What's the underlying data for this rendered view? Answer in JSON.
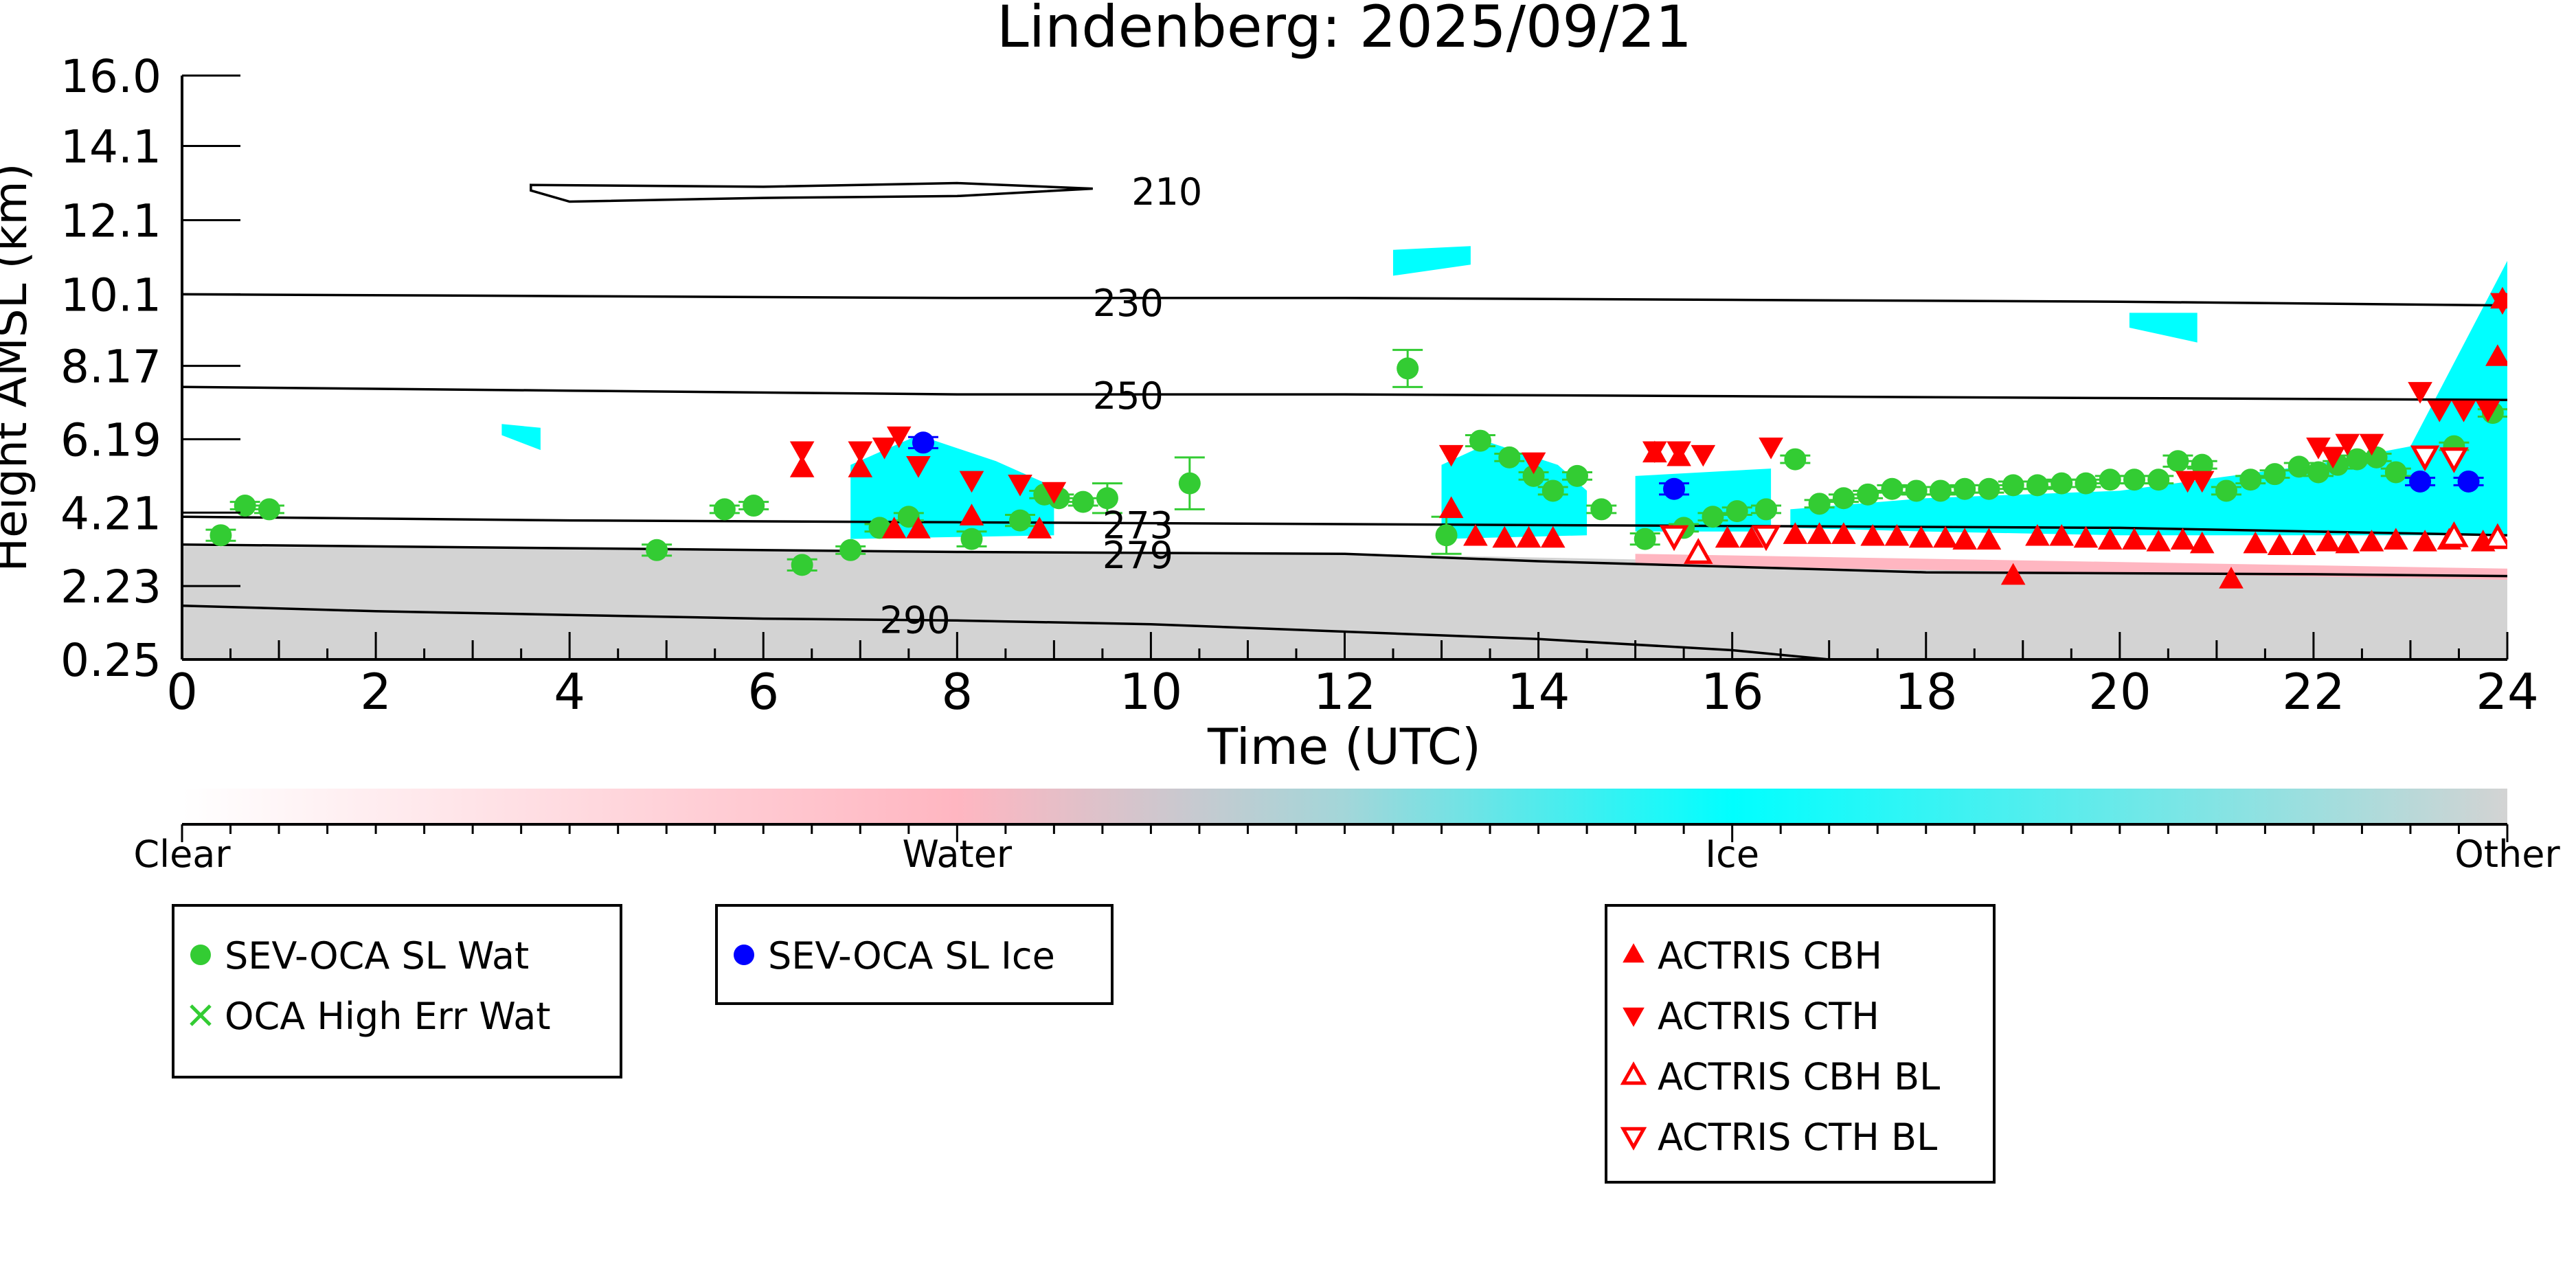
{
  "chart_data": {
    "type": "scatter",
    "title": "Lindenberg: 2025/09/21",
    "xlabel": "Time (UTC)",
    "ylabel": "Height AMSL (km)",
    "xlim": [
      0,
      24
    ],
    "ylim": [
      0.25,
      16.0
    ],
    "x_ticks": [
      0,
      2,
      4,
      6,
      8,
      10,
      12,
      14,
      16,
      18,
      20,
      22,
      24
    ],
    "y_ticks": [
      0.25,
      2.23,
      4.21,
      6.19,
      8.17,
      10.1,
      12.1,
      14.1,
      16.0
    ],
    "y_tick_labels": [
      "0.25",
      "2.23",
      "4.21",
      "6.19",
      "8.17",
      "10.1",
      "12.1",
      "14.1",
      "16.0"
    ],
    "colorbar": {
      "labels": [
        "Clear",
        "Water",
        "Ice",
        "Other"
      ],
      "colors": [
        "#ffffff",
        "#ffb6c1",
        "#00ffff",
        "#d3d3d3"
      ]
    },
    "background_fills": [
      {
        "name": "Other (low)",
        "color": "#d3d3d3",
        "points": [
          [
            0,
            0.25
          ],
          [
            0,
            3.3
          ],
          [
            3,
            3.25
          ],
          [
            6,
            3.2
          ],
          [
            8,
            3.15
          ],
          [
            10,
            3.1
          ],
          [
            12,
            3.1
          ],
          [
            14,
            3.0
          ],
          [
            16,
            2.9
          ],
          [
            18,
            2.7
          ],
          [
            20,
            2.65
          ],
          [
            22,
            2.6
          ],
          [
            24,
            2.5
          ],
          [
            24,
            0.25
          ]
        ]
      },
      {
        "name": "Water patch",
        "color": "#ffb6c1",
        "points": [
          [
            15,
            3.1
          ],
          [
            24,
            2.7
          ],
          [
            24,
            2.4
          ],
          [
            15,
            2.8
          ]
        ]
      },
      {
        "name": "Ice 6.5-9",
        "color": "#00ffff",
        "points": [
          [
            6.9,
            3.5
          ],
          [
            6.9,
            5.5
          ],
          [
            7.6,
            6.3
          ],
          [
            8.4,
            5.6
          ],
          [
            9,
            4.9
          ],
          [
            9,
            3.6
          ]
        ]
      },
      {
        "name": "Ice 13-14.5",
        "color": "#00ffff",
        "points": [
          [
            13,
            3.5
          ],
          [
            13,
            5.5
          ],
          [
            13.5,
            6.1
          ],
          [
            14.2,
            5.5
          ],
          [
            14.5,
            4.8
          ],
          [
            14.5,
            3.6
          ]
        ]
      },
      {
        "name": "Ice 15-16.5",
        "color": "#00ffff",
        "points": [
          [
            15,
            3.7
          ],
          [
            15,
            5.2
          ],
          [
            16.4,
            5.4
          ],
          [
            16.4,
            3.7
          ]
        ]
      },
      {
        "name": "Ice 16.5-24",
        "color": "#00ffff",
        "points": [
          [
            16.6,
            3.8
          ],
          [
            16.6,
            4.3
          ],
          [
            18,
            4.6
          ],
          [
            20,
            4.8
          ],
          [
            22,
            5.5
          ],
          [
            23,
            6.0
          ],
          [
            23.5,
            8.5
          ],
          [
            24,
            11.0
          ],
          [
            24,
            3.6
          ],
          [
            20,
            3.6
          ],
          [
            18,
            3.7
          ]
        ]
      },
      {
        "name": "Ice 12.5-13 high",
        "color": "#00ffff",
        "points": [
          [
            12.5,
            10.6
          ],
          [
            12.5,
            11.3
          ],
          [
            13.3,
            11.4
          ],
          [
            13.3,
            10.9
          ]
        ]
      },
      {
        "name": "Ice 20.5 high",
        "color": "#00ffff",
        "points": [
          [
            20.1,
            9.2
          ],
          [
            20.1,
            9.6
          ],
          [
            20.8,
            9.6
          ],
          [
            20.8,
            8.8
          ]
        ]
      },
      {
        "name": "Ice 3.3 small",
        "color": "#00ffff",
        "points": [
          [
            3.3,
            6.3
          ],
          [
            3.3,
            6.6
          ],
          [
            3.7,
            6.5
          ],
          [
            3.7,
            5.9
          ]
        ]
      }
    ],
    "contours": [
      {
        "label": "210",
        "label_x": 9.8,
        "label_y": 12.85,
        "points": [
          [
            3.6,
            13.05
          ],
          [
            6,
            13.0
          ],
          [
            8,
            13.1
          ],
          [
            9.4,
            12.95
          ],
          [
            8,
            12.75
          ],
          [
            6,
            12.7
          ],
          [
            4,
            12.6
          ],
          [
            3.6,
            12.9
          ]
        ]
      },
      {
        "label": "230",
        "label_x": 9.4,
        "label_y": 9.85,
        "points": [
          [
            0,
            10.1
          ],
          [
            4,
            10.05
          ],
          [
            8,
            10.0
          ],
          [
            12,
            10.0
          ],
          [
            16,
            9.95
          ],
          [
            20,
            9.9
          ],
          [
            24,
            9.8
          ]
        ]
      },
      {
        "label": "250",
        "label_x": 9.4,
        "label_y": 7.35,
        "points": [
          [
            0,
            7.6
          ],
          [
            4,
            7.5
          ],
          [
            8,
            7.4
          ],
          [
            12,
            7.4
          ],
          [
            16,
            7.35
          ],
          [
            20,
            7.3
          ],
          [
            24,
            7.25
          ]
        ]
      },
      {
        "label": "273",
        "label_x": 9.5,
        "label_y": 3.85,
        "points": [
          [
            0,
            4.1
          ],
          [
            4,
            4.0
          ],
          [
            8,
            3.95
          ],
          [
            12,
            3.9
          ],
          [
            16,
            3.85
          ],
          [
            20,
            3.8
          ],
          [
            24,
            3.6
          ]
        ]
      },
      {
        "label": "279",
        "label_x": 9.5,
        "label_y": 3.05,
        "points": [
          [
            0,
            3.35
          ],
          [
            4,
            3.25
          ],
          [
            8,
            3.15
          ],
          [
            12,
            3.1
          ],
          [
            14,
            2.9
          ],
          [
            18,
            2.6
          ],
          [
            22,
            2.55
          ],
          [
            24,
            2.5
          ]
        ]
      },
      {
        "label": "290",
        "label_x": 7.2,
        "label_y": 1.3,
        "points": [
          [
            0,
            1.7
          ],
          [
            2,
            1.55
          ],
          [
            4,
            1.45
          ],
          [
            6,
            1.35
          ],
          [
            8,
            1.3
          ],
          [
            10,
            1.2
          ],
          [
            12,
            1.0
          ],
          [
            14,
            0.8
          ],
          [
            16,
            0.5
          ],
          [
            17,
            0.25
          ]
        ]
      }
    ],
    "series": [
      {
        "name": "SEV-OCA SL Wat",
        "marker": "circle",
        "color": "#33cc33",
        "x": [
          0.4,
          0.65,
          0.9,
          4.9,
          5.6,
          5.9,
          6.4,
          6.9,
          7.2,
          7.5,
          8.15,
          8.65,
          8.9,
          9.05,
          9.3,
          9.55,
          10.4,
          12.65,
          13.05,
          13.4,
          13.7,
          13.95,
          14.15,
          14.4,
          14.65,
          15.1,
          15.5,
          15.8,
          16.05,
          16.35,
          16.65,
          16.9,
          17.15,
          17.4,
          17.65,
          17.9,
          18.15,
          18.4,
          18.65,
          18.9,
          19.15,
          19.4,
          19.65,
          19.9,
          20.15,
          20.4,
          20.6,
          20.85,
          21.1,
          21.35,
          21.6,
          21.85,
          22.05,
          22.25,
          22.45,
          22.65,
          22.85,
          23.45,
          23.85
        ],
        "y": [
          3.6,
          4.4,
          4.3,
          3.2,
          4.3,
          4.4,
          2.8,
          3.2,
          3.8,
          4.1,
          3.5,
          4.0,
          4.7,
          4.6,
          4.5,
          4.6,
          5.0,
          8.1,
          3.6,
          6.15,
          5.7,
          5.2,
          4.8,
          5.2,
          4.3,
          3.5,
          3.8,
          4.1,
          4.25,
          4.3,
          5.65,
          4.45,
          4.6,
          4.7,
          4.85,
          4.8,
          4.8,
          4.85,
          4.85,
          4.95,
          4.95,
          5.0,
          5.0,
          5.1,
          5.1,
          5.1,
          5.6,
          5.5,
          4.8,
          5.1,
          5.25,
          5.45,
          5.3,
          5.5,
          5.65,
          5.7,
          5.3,
          6.0,
          6.9
        ],
        "err": [
          0.15,
          0.1,
          0.1,
          0.15,
          0.1,
          0.1,
          0.15,
          0.1,
          0.1,
          0.1,
          0.2,
          0.15,
          0.1,
          0.1,
          0.1,
          0.4,
          0.7,
          0.5,
          0.5,
          0.15,
          0.1,
          0.1,
          0.1,
          0.1,
          0.1,
          0.15,
          0.1,
          0.1,
          0.1,
          0.1,
          0.1,
          0.1,
          0.1,
          0.1,
          0.1,
          0.1,
          0.1,
          0.1,
          0.1,
          0.1,
          0.1,
          0.1,
          0.1,
          0.1,
          0.1,
          0.1,
          0.15,
          0.1,
          0.1,
          0.1,
          0.1,
          0.1,
          0.1,
          0.1,
          0.1,
          0.1,
          0.1,
          0.1,
          0.1
        ]
      },
      {
        "name": "OCA High Err Wat",
        "marker": "x",
        "color": "#33cc33",
        "x": [],
        "y": []
      },
      {
        "name": "SEV-OCA SL Ice",
        "marker": "circle",
        "color": "#0000ff",
        "x": [
          7.65,
          15.4,
          23.1,
          23.6
        ],
        "y": [
          6.1,
          4.85,
          5.05,
          5.05
        ],
        "err": [
          0.15,
          0.15,
          0.1,
          0.1
        ]
      },
      {
        "name": "ACTRIS CBH",
        "marker": "triangle-up",
        "color": "#ff0000",
        "x": [
          6.4,
          7.0,
          7.35,
          7.6,
          8.15,
          8.85,
          13.1,
          13.35,
          13.65,
          13.9,
          14.15,
          15.2,
          15.45,
          15.95,
          16.2,
          16.65,
          16.9,
          17.15,
          17.45,
          17.7,
          17.95,
          18.2,
          18.4,
          18.65,
          18.9,
          19.15,
          19.4,
          19.65,
          19.9,
          20.15,
          20.4,
          20.65,
          20.85,
          21.15,
          21.4,
          21.65,
          21.9,
          22.15,
          22.35,
          22.6,
          22.85,
          23.15,
          23.4,
          23.75,
          23.9,
          23.95
        ],
        "y": [
          5.4,
          5.4,
          3.75,
          3.75,
          4.1,
          3.75,
          4.3,
          3.55,
          3.5,
          3.5,
          3.5,
          5.8,
          5.7,
          3.5,
          3.5,
          3.6,
          3.6,
          3.6,
          3.55,
          3.55,
          3.5,
          3.5,
          3.45,
          3.45,
          2.5,
          3.55,
          3.55,
          3.5,
          3.45,
          3.45,
          3.4,
          3.45,
          3.35,
          2.4,
          3.35,
          3.3,
          3.3,
          3.4,
          3.35,
          3.4,
          3.45,
          3.4,
          3.45,
          3.4,
          8.4,
          9.95
        ],
        "open": false
      },
      {
        "name": "ACTRIS CTH",
        "marker": "triangle-down",
        "color": "#ff0000",
        "x": [
          6.4,
          7.0,
          7.25,
          7.4,
          7.6,
          8.15,
          8.65,
          9.0,
          13.1,
          13.95,
          15.2,
          15.45,
          15.7,
          16.4,
          20.7,
          20.85,
          22.05,
          22.2,
          22.35,
          22.6,
          23.1,
          23.3,
          23.55,
          23.8,
          23.95
        ],
        "y": [
          5.9,
          5.9,
          6.0,
          6.3,
          5.5,
          5.1,
          5.0,
          4.8,
          5.8,
          5.6,
          5.9,
          5.9,
          5.8,
          6.0,
          5.1,
          5.1,
          6.0,
          5.75,
          6.1,
          6.1,
          7.5,
          7.0,
          7.0,
          7.0,
          9.9
        ],
        "open": false
      },
      {
        "name": "ACTRIS CBH BL",
        "marker": "triangle-up",
        "color": "#ff0000",
        "x": [
          15.65,
          23.45,
          23.9
        ],
        "y": [
          3.1,
          3.55,
          3.5
        ],
        "open": true
      },
      {
        "name": "ACTRIS CTH BL",
        "marker": "triangle-down",
        "color": "#ff0000",
        "x": [
          15.4,
          16.35,
          23.15,
          23.45
        ],
        "y": [
          3.6,
          3.6,
          5.75,
          5.7
        ],
        "open": true
      }
    ]
  },
  "legends": [
    {
      "items": [
        "SEV-OCA SL Wat",
        "OCA High Err Wat"
      ]
    },
    {
      "items": [
        "SEV-OCA SL Ice"
      ]
    },
    {
      "items": [
        "ACTRIS CBH",
        "ACTRIS CTH",
        "ACTRIS CBH BL",
        "ACTRIS CTH BL"
      ]
    }
  ]
}
